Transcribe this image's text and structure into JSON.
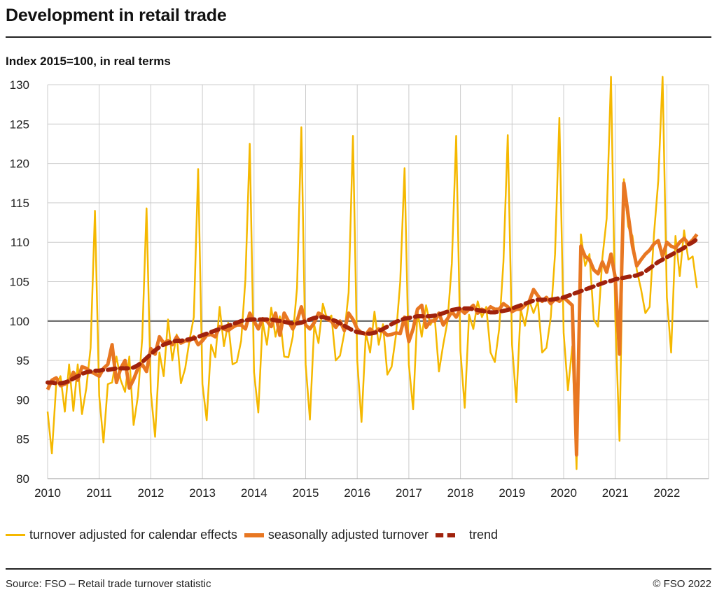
{
  "title": "Development in retail trade",
  "subtitle": "Index 2015=100, in real terms",
  "footer": {
    "source": "Source: FSO – Retail trade turnover statistic",
    "copyright": "© FSO 2022"
  },
  "colors": {
    "calendar": "#f5b800",
    "seasonal": "#e87722",
    "trend": "#a0220c",
    "reference": "#777777",
    "grid": "#cccccc"
  },
  "chart_data": {
    "type": "line",
    "x_start": "2010-01",
    "frequency": "monthly",
    "xticks": [
      "2010",
      "2011",
      "2012",
      "2013",
      "2014",
      "2015",
      "2016",
      "2017",
      "2018",
      "2019",
      "2020",
      "2021",
      "2022"
    ],
    "yticks": [
      80,
      85,
      90,
      95,
      100,
      105,
      110,
      115,
      120,
      125,
      130
    ],
    "ylim": [
      80,
      130
    ],
    "reference_line": 100,
    "grid": true,
    "legend_position": "bottom",
    "series": [
      {
        "name": "turnover adjusted for calendar effects",
        "style": "thin",
        "values": [
          88.5,
          83.2,
          92.0,
          93.0,
          88.5,
          94.5,
          88.6,
          94.5,
          88.2,
          91.5,
          96.6,
          114.0,
          90.5,
          84.6,
          92.0,
          92.2,
          95.5,
          92.5,
          91.0,
          95.5,
          86.8,
          90.5,
          97.8,
          114.3,
          91.0,
          85.3,
          96.0,
          93.0,
          100.2,
          95.0,
          98.3,
          92.1,
          94.0,
          97.6,
          100.5,
          119.3,
          92.0,
          87.4,
          97.0,
          95.4,
          101.8,
          96.8,
          99.8,
          94.5,
          94.8,
          97.5,
          105.3,
          122.5,
          93.5,
          88.4,
          100.0,
          97.0,
          101.7,
          98.0,
          100.6,
          95.5,
          95.4,
          98.0,
          104.2,
          124.6,
          94.5,
          87.5,
          99.5,
          97.2,
          102.2,
          100.2,
          100.7,
          95.0,
          95.6,
          98.5,
          103.6,
          123.5,
          95.0,
          87.2,
          98.5,
          96.0,
          101.2,
          97.0,
          99.6,
          93.2,
          94.2,
          98.2,
          105.0,
          119.4,
          94.5,
          88.8,
          101.3,
          98.0,
          102.0,
          99.5,
          100.5,
          93.6,
          97.0,
          100.0,
          107.3,
          123.5,
          96.2,
          89.0,
          100.8,
          99.0,
          102.5,
          100.5,
          101.8,
          96.0,
          94.8,
          99.0,
          107.5,
          123.6,
          97.0,
          89.7,
          101.5,
          99.4,
          102.6,
          101.0,
          102.5,
          96.0,
          96.6,
          100.5,
          108.5,
          125.8,
          98.5,
          91.2,
          96.8,
          81.2,
          111.0,
          107.0,
          108.5,
          100.2,
          99.3,
          108.0,
          113.0,
          131.0,
          100.5,
          84.8,
          118.0,
          112.0,
          110.8,
          106.5,
          104.0,
          101.0,
          101.8,
          111.0,
          117.8,
          131.0,
          103.0,
          96.0,
          110.8,
          105.7,
          111.5,
          107.8,
          108.2,
          104.2
        ]
      },
      {
        "name": "seasonally adjusted turnover",
        "style": "thick",
        "values": [
          91.3,
          92.5,
          92.8,
          91.8,
          92.0,
          92.3,
          93.5,
          92.5,
          94.2,
          94.0,
          93.6,
          93.3,
          93.0,
          94.0,
          94.5,
          97.0,
          92.2,
          94.0,
          95.0,
          91.5,
          92.6,
          94.0,
          94.5,
          93.6,
          96.5,
          95.8,
          98.0,
          97.2,
          97.5,
          97.0,
          98.0,
          97.2,
          97.5,
          97.5,
          98.0,
          97.0,
          97.5,
          98.2,
          98.3,
          98.0,
          99.3,
          99.0,
          98.8,
          99.2,
          99.5,
          99.5,
          99.0,
          101.0,
          100.0,
          99.0,
          100.3,
          100.0,
          99.3,
          101.0,
          98.2,
          101.0,
          100.0,
          99.0,
          100.0,
          101.8,
          99.5,
          99.0,
          99.8,
          101.0,
          100.7,
          100.2,
          100.0,
          99.2,
          100.0,
          98.8,
          101.0,
          100.2,
          99.0,
          98.5,
          98.3,
          99.0,
          98.5,
          99.0,
          98.7,
          98.2,
          98.3,
          98.5,
          98.4,
          100.5,
          97.4,
          99.0,
          101.5,
          102.0,
          99.2,
          100.0,
          100.0,
          101.0,
          99.5,
          100.3,
          101.2,
          100.5,
          101.5,
          101.0,
          101.5,
          102.0,
          101.0,
          101.5,
          101.2,
          101.8,
          101.5,
          101.5,
          102.2,
          101.8,
          101.2,
          101.5,
          101.5,
          102.0,
          102.5,
          104.0,
          103.2,
          102.5,
          103.0,
          102.2,
          102.8,
          102.5,
          103.0,
          102.5,
          102.0,
          83.0,
          109.5,
          108.2,
          107.8,
          106.5,
          106.0,
          107.5,
          106.2,
          108.5,
          105.5,
          95.8,
          117.5,
          113.5,
          109.5,
          107.0,
          107.8,
          108.5,
          109.0,
          109.8,
          110.2,
          108.2,
          110.0,
          109.5,
          109.3,
          110.0,
          110.5,
          109.8,
          110.3,
          111.0
        ]
      },
      {
        "name": "trend",
        "style": "dashed",
        "values": [
          92.2,
          92.2,
          92.1,
          92.1,
          92.2,
          92.4,
          92.7,
          93.0,
          93.3,
          93.5,
          93.6,
          93.7,
          93.7,
          93.8,
          93.8,
          93.9,
          94.0,
          94.0,
          94.0,
          94.0,
          94.1,
          94.4,
          94.8,
          95.3,
          95.8,
          96.3,
          96.7,
          97.0,
          97.2,
          97.4,
          97.5,
          97.5,
          97.6,
          97.7,
          97.8,
          98.0,
          98.2,
          98.4,
          98.6,
          98.8,
          99.0,
          99.2,
          99.4,
          99.6,
          99.8,
          100.0,
          100.1,
          100.2,
          100.2,
          100.2,
          100.2,
          100.2,
          100.2,
          100.1,
          100.0,
          99.9,
          99.8,
          99.7,
          99.7,
          99.8,
          100.0,
          100.2,
          100.4,
          100.5,
          100.5,
          100.4,
          100.2,
          100.0,
          99.7,
          99.4,
          99.1,
          98.8,
          98.6,
          98.5,
          98.4,
          98.4,
          98.5,
          98.7,
          99.0,
          99.3,
          99.6,
          99.9,
          100.1,
          100.3,
          100.4,
          100.5,
          100.6,
          100.6,
          100.6,
          100.6,
          100.7,
          100.8,
          101.0,
          101.2,
          101.4,
          101.5,
          101.6,
          101.6,
          101.6,
          101.5,
          101.4,
          101.3,
          101.2,
          101.1,
          101.1,
          101.2,
          101.3,
          101.4,
          101.6,
          101.8,
          102.0,
          102.2,
          102.4,
          102.6,
          102.7,
          102.7,
          102.7,
          102.7,
          102.8,
          102.9,
          103.0,
          103.2,
          103.4,
          103.6,
          103.8,
          104.0,
          104.2,
          104.4,
          104.6,
          104.8,
          105.0,
          105.1,
          105.3,
          105.4,
          105.5,
          105.6,
          105.7,
          105.8,
          106.0,
          106.3,
          106.7,
          107.1,
          107.5,
          107.8,
          108.1,
          108.4,
          108.7,
          109.0,
          109.3,
          109.7,
          110.0,
          110.4
        ]
      }
    ]
  }
}
